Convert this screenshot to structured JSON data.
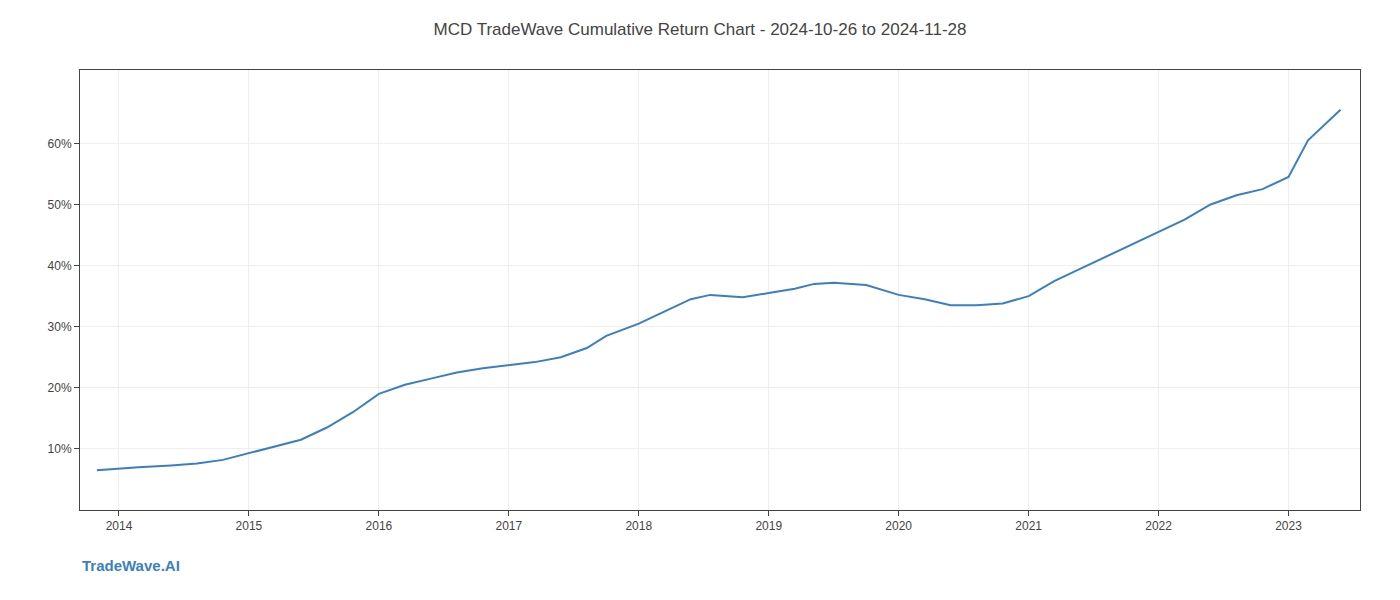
{
  "chart_data": {
    "type": "line",
    "title": "MCD TradeWave Cumulative Return Chart - 2024-10-26 to 2024-11-28",
    "annotations": [
      "TradeWave.AI"
    ],
    "color": "#3a7fc1",
    "x": [
      2013.83,
      2014.0,
      2014.15,
      2014.4,
      2014.6,
      2014.8,
      2015.0,
      2015.15,
      2015.4,
      2015.6,
      2015.8,
      2016.0,
      2016.2,
      2016.4,
      2016.6,
      2016.8,
      2017.0,
      2017.2,
      2017.4,
      2017.6,
      2017.75,
      2018.0,
      2018.2,
      2018.4,
      2018.55,
      2018.8,
      2019.0,
      2019.2,
      2019.35,
      2019.5,
      2019.75,
      2020.0,
      2020.2,
      2020.4,
      2020.6,
      2020.8,
      2021.0,
      2021.2,
      2021.4,
      2021.6,
      2021.8,
      2022.0,
      2022.2,
      2022.4,
      2022.6,
      2022.8,
      2023.0,
      2023.15,
      2023.4
    ],
    "values": [
      6.5,
      6.8,
      7.0,
      7.3,
      7.6,
      8.2,
      9.3,
      10.0,
      11.5,
      13.5,
      16.0,
      19.0,
      20.5,
      21.5,
      22.5,
      23.2,
      23.7,
      24.2,
      25.0,
      26.5,
      28.5,
      30.5,
      32.5,
      34.5,
      35.2,
      34.8,
      35.5,
      36.2,
      37.0,
      37.2,
      36.8,
      35.2,
      34.5,
      33.5,
      33.5,
      33.8,
      35.0,
      37.5,
      39.5,
      41.5,
      43.5,
      45.5,
      47.5,
      50.0,
      51.5,
      52.5,
      54.5,
      60.5,
      65.5
    ],
    "xlim": [
      2013.7,
      2023.55
    ],
    "ylim": [
      0,
      72
    ],
    "xticks": [
      2014,
      2015,
      2016,
      2017,
      2018,
      2019,
      2020,
      2021,
      2022,
      2023
    ],
    "yticks": [
      {
        "value": 10,
        "label": "10%"
      },
      {
        "value": 20,
        "label": "20%"
      },
      {
        "value": 30,
        "label": "30%"
      },
      {
        "value": 40,
        "label": "40%"
      },
      {
        "value": 50,
        "label": "50%"
      },
      {
        "value": 60,
        "label": "60%"
      }
    ],
    "grid": true
  }
}
